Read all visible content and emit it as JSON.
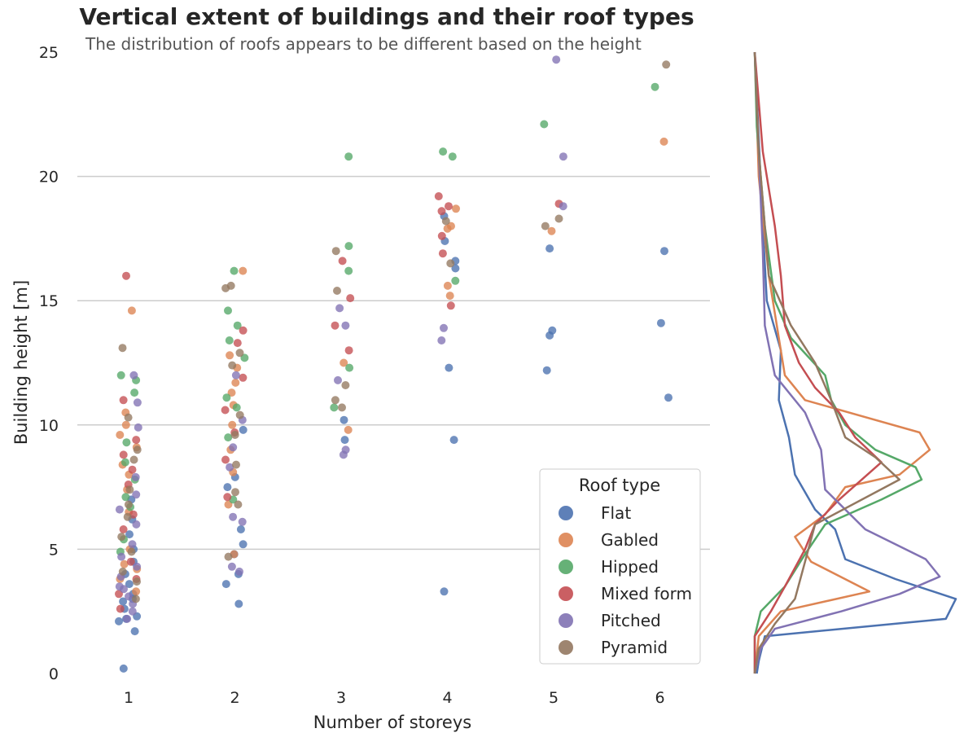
{
  "chart_data": {
    "type": "scatter",
    "title": "Vertical extent of buildings and their roof types",
    "subtitle": "The distribution of roofs appears to be different based on the height",
    "xlabel": "Number of storeys",
    "ylabel": "Building height [m]",
    "categories": [
      "1",
      "2",
      "3",
      "4",
      "5",
      "6"
    ],
    "ylim": [
      0,
      25
    ],
    "yticks": [
      "0",
      "5",
      "10",
      "15",
      "20",
      "25"
    ],
    "grid": "horizontal",
    "legend": {
      "title": "Roof type",
      "placement": "bottom-right"
    },
    "series": [
      {
        "name": "Flat",
        "color": "#4c72b0",
        "points": [
          [
            1,
            2.1
          ],
          [
            1,
            2.3
          ],
          [
            1,
            2.6
          ],
          [
            1,
            2.9
          ],
          [
            1,
            3.2
          ],
          [
            1,
            3.6
          ],
          [
            1,
            4.0
          ],
          [
            1,
            4.5
          ],
          [
            1,
            5.0
          ],
          [
            1,
            5.6
          ],
          [
            1,
            6.2
          ],
          [
            1,
            7.0
          ],
          [
            1,
            1.7
          ],
          [
            1,
            0.2
          ],
          [
            1,
            2.2
          ],
          [
            1,
            3.0
          ],
          [
            2,
            2.8
          ],
          [
            2,
            3.6
          ],
          [
            2,
            4.0
          ],
          [
            2,
            4.8
          ],
          [
            2,
            5.2
          ],
          [
            2,
            5.8
          ],
          [
            2,
            7.5
          ],
          [
            2,
            7.9
          ],
          [
            2,
            9.8
          ],
          [
            3,
            9.4
          ],
          [
            3,
            10.2
          ],
          [
            4,
            12.3
          ],
          [
            4,
            16.3
          ],
          [
            4,
            16.6
          ],
          [
            4,
            17.4
          ],
          [
            4,
            18.4
          ],
          [
            4,
            9.4
          ],
          [
            4,
            3.3
          ],
          [
            5,
            12.2
          ],
          [
            5,
            13.6
          ],
          [
            5,
            13.8
          ],
          [
            5,
            17.1
          ],
          [
            6,
            11.1
          ],
          [
            6,
            14.1
          ],
          [
            6,
            17.0
          ]
        ]
      },
      {
        "name": "Gabled",
        "color": "#dd8452",
        "points": [
          [
            1,
            3.3
          ],
          [
            1,
            3.8
          ],
          [
            1,
            4.4
          ],
          [
            1,
            5.0
          ],
          [
            1,
            6.5
          ],
          [
            1,
            7.4
          ],
          [
            1,
            8.4
          ],
          [
            1,
            9.1
          ],
          [
            1,
            9.6
          ],
          [
            1,
            10.0
          ],
          [
            1,
            10.5
          ],
          [
            1,
            14.6
          ],
          [
            1,
            4.2
          ],
          [
            1,
            8.0
          ],
          [
            2,
            6.8
          ],
          [
            2,
            8.1
          ],
          [
            2,
            9.0
          ],
          [
            2,
            10.0
          ],
          [
            2,
            10.8
          ],
          [
            2,
            11.3
          ],
          [
            2,
            11.7
          ],
          [
            2,
            12.3
          ],
          [
            2,
            12.8
          ],
          [
            2,
            16.2
          ],
          [
            2,
            4.8
          ],
          [
            3,
            9.8
          ],
          [
            3,
            12.5
          ],
          [
            4,
            15.2
          ],
          [
            4,
            15.6
          ],
          [
            4,
            17.9
          ],
          [
            4,
            18.0
          ],
          [
            4,
            18.7
          ],
          [
            5,
            17.8
          ],
          [
            6,
            21.4
          ]
        ]
      },
      {
        "name": "Hipped",
        "color": "#55a868",
        "points": [
          [
            1,
            5.4
          ],
          [
            1,
            6.7
          ],
          [
            1,
            7.1
          ],
          [
            1,
            8.5
          ],
          [
            1,
            9.3
          ],
          [
            1,
            11.3
          ],
          [
            1,
            11.8
          ],
          [
            1,
            12.0
          ],
          [
            1,
            7.8
          ],
          [
            1,
            4.9
          ],
          [
            2,
            7.0
          ],
          [
            2,
            9.5
          ],
          [
            2,
            11.1
          ],
          [
            2,
            12.7
          ],
          [
            2,
            13.4
          ],
          [
            2,
            14.0
          ],
          [
            2,
            14.6
          ],
          [
            2,
            16.2
          ],
          [
            2,
            10.7
          ],
          [
            3,
            10.7
          ],
          [
            3,
            12.3
          ],
          [
            3,
            16.2
          ],
          [
            3,
            17.2
          ],
          [
            3,
            20.8
          ],
          [
            4,
            15.8
          ],
          [
            4,
            20.8
          ],
          [
            4,
            21.0
          ],
          [
            5,
            22.1
          ],
          [
            6,
            23.6
          ]
        ]
      },
      {
        "name": "Mixed form",
        "color": "#c44e52",
        "points": [
          [
            1,
            2.6
          ],
          [
            1,
            3.2
          ],
          [
            1,
            4.5
          ],
          [
            1,
            5.8
          ],
          [
            1,
            6.4
          ],
          [
            1,
            7.6
          ],
          [
            1,
            8.2
          ],
          [
            1,
            8.8
          ],
          [
            1,
            9.4
          ],
          [
            1,
            11.0
          ],
          [
            1,
            16.0
          ],
          [
            1,
            3.8
          ],
          [
            2,
            7.1
          ],
          [
            2,
            9.7
          ],
          [
            2,
            10.6
          ],
          [
            2,
            11.9
          ],
          [
            2,
            13.3
          ],
          [
            2,
            13.8
          ],
          [
            2,
            8.6
          ],
          [
            3,
            13.0
          ],
          [
            3,
            14.0
          ],
          [
            3,
            15.1
          ],
          [
            3,
            16.6
          ],
          [
            4,
            14.8
          ],
          [
            4,
            16.9
          ],
          [
            4,
            17.6
          ],
          [
            4,
            18.6
          ],
          [
            4,
            18.8
          ],
          [
            4,
            19.2
          ],
          [
            5,
            18.9
          ]
        ]
      },
      {
        "name": "Pitched",
        "color": "#8172b3",
        "points": [
          [
            1,
            2.5
          ],
          [
            1,
            2.8
          ],
          [
            1,
            3.1
          ],
          [
            1,
            3.5
          ],
          [
            1,
            3.9
          ],
          [
            1,
            4.3
          ],
          [
            1,
            4.7
          ],
          [
            1,
            5.2
          ],
          [
            1,
            6.0
          ],
          [
            1,
            6.6
          ],
          [
            1,
            7.2
          ],
          [
            1,
            7.9
          ],
          [
            1,
            9.9
          ],
          [
            1,
            10.9
          ],
          [
            1,
            12.0
          ],
          [
            1,
            2.2
          ],
          [
            1,
            3.4
          ],
          [
            2,
            4.1
          ],
          [
            2,
            6.1
          ],
          [
            2,
            6.3
          ],
          [
            2,
            8.3
          ],
          [
            2,
            9.1
          ],
          [
            2,
            10.2
          ],
          [
            2,
            12.0
          ],
          [
            2,
            4.3
          ],
          [
            3,
            8.8
          ],
          [
            3,
            9.0
          ],
          [
            3,
            11.8
          ],
          [
            3,
            14.0
          ],
          [
            3,
            14.7
          ],
          [
            4,
            13.4
          ],
          [
            4,
            13.9
          ],
          [
            5,
            18.8
          ],
          [
            5,
            20.8
          ],
          [
            5,
            24.7
          ]
        ]
      },
      {
        "name": "Pyramid",
        "color": "#937860",
        "points": [
          [
            1,
            3.0
          ],
          [
            1,
            3.7
          ],
          [
            1,
            4.1
          ],
          [
            1,
            4.9
          ],
          [
            1,
            5.5
          ],
          [
            1,
            6.8
          ],
          [
            1,
            7.4
          ],
          [
            1,
            8.6
          ],
          [
            1,
            9.0
          ],
          [
            1,
            10.3
          ],
          [
            1,
            13.1
          ],
          [
            1,
            6.3
          ],
          [
            2,
            4.7
          ],
          [
            2,
            6.8
          ],
          [
            2,
            7.3
          ],
          [
            2,
            8.4
          ],
          [
            2,
            9.6
          ],
          [
            2,
            10.4
          ],
          [
            2,
            12.4
          ],
          [
            2,
            12.9
          ],
          [
            2,
            15.5
          ],
          [
            2,
            15.6
          ],
          [
            3,
            10.7
          ],
          [
            3,
            11.0
          ],
          [
            3,
            11.6
          ],
          [
            3,
            15.4
          ],
          [
            3,
            17.0
          ],
          [
            4,
            16.5
          ],
          [
            4,
            18.2
          ],
          [
            5,
            18.0
          ],
          [
            5,
            18.3
          ],
          [
            6,
            24.5
          ]
        ]
      }
    ],
    "density_profiles": {
      "type": "line",
      "description_axis": "height",
      "series": [
        {
          "name": "Flat",
          "color": "#4c72b0",
          "points": [
            [
              0,
              0.01
            ],
            [
              0.5,
              0.02
            ],
            [
              1.5,
              0.05
            ],
            [
              2.2,
              0.95
            ],
            [
              3.0,
              1.0
            ],
            [
              3.8,
              0.7
            ],
            [
              4.6,
              0.45
            ],
            [
              5.8,
              0.4
            ],
            [
              6.6,
              0.3
            ],
            [
              8.0,
              0.2
            ],
            [
              9.5,
              0.17
            ],
            [
              11.0,
              0.12
            ],
            [
              13.0,
              0.13
            ],
            [
              15.0,
              0.06
            ],
            [
              18.0,
              0.04
            ],
            [
              25,
              0.0
            ]
          ]
        },
        {
          "name": "Gabled",
          "color": "#dd8452",
          "points": [
            [
              0,
              0.0
            ],
            [
              1.5,
              0.02
            ],
            [
              2.5,
              0.13
            ],
            [
              3.3,
              0.57
            ],
            [
              4.5,
              0.28
            ],
            [
              5.5,
              0.2
            ],
            [
              6.4,
              0.35
            ],
            [
              7.5,
              0.45
            ],
            [
              8.0,
              0.72
            ],
            [
              9.0,
              0.87
            ],
            [
              9.7,
              0.82
            ],
            [
              11.0,
              0.25
            ],
            [
              12.0,
              0.15
            ],
            [
              13.5,
              0.12
            ],
            [
              16.0,
              0.07
            ],
            [
              20.0,
              0.02
            ],
            [
              25,
              0.0
            ]
          ]
        },
        {
          "name": "Hipped",
          "color": "#55a868",
          "points": [
            [
              0,
              0.0
            ],
            [
              1.5,
              0.0
            ],
            [
              2.5,
              0.03
            ],
            [
              3.5,
              0.15
            ],
            [
              4.8,
              0.25
            ],
            [
              6.0,
              0.35
            ],
            [
              7.0,
              0.63
            ],
            [
              7.8,
              0.83
            ],
            [
              8.3,
              0.8
            ],
            [
              9.0,
              0.6
            ],
            [
              10.0,
              0.45
            ],
            [
              11.0,
              0.38
            ],
            [
              12.0,
              0.35
            ],
            [
              13.5,
              0.18
            ],
            [
              15.0,
              0.1
            ],
            [
              18.0,
              0.05
            ],
            [
              22.0,
              0.01
            ],
            [
              25,
              0.0
            ]
          ]
        },
        {
          "name": "Mixed form",
          "color": "#c44e52",
          "points": [
            [
              0,
              0.0
            ],
            [
              1.5,
              0.0
            ],
            [
              2.5,
              0.08
            ],
            [
              3.5,
              0.15
            ],
            [
              5.0,
              0.25
            ],
            [
              6.0,
              0.3
            ],
            [
              7.0,
              0.42
            ],
            [
              8.5,
              0.63
            ],
            [
              9.5,
              0.5
            ],
            [
              10.5,
              0.42
            ],
            [
              11.5,
              0.3
            ],
            [
              12.5,
              0.22
            ],
            [
              14.0,
              0.15
            ],
            [
              16.0,
              0.13
            ],
            [
              18.0,
              0.1
            ],
            [
              21.0,
              0.04
            ],
            [
              25,
              0.0
            ]
          ]
        },
        {
          "name": "Pitched",
          "color": "#8172b3",
          "points": [
            [
              0,
              0.0
            ],
            [
              1.0,
              0.03
            ],
            [
              1.8,
              0.1
            ],
            [
              2.5,
              0.43
            ],
            [
              3.2,
              0.72
            ],
            [
              3.9,
              0.92
            ],
            [
              4.6,
              0.85
            ],
            [
              5.8,
              0.55
            ],
            [
              7.4,
              0.35
            ],
            [
              9.0,
              0.33
            ],
            [
              10.5,
              0.25
            ],
            [
              12.0,
              0.1
            ],
            [
              14.0,
              0.05
            ],
            [
              17.0,
              0.04
            ],
            [
              25,
              0.0
            ]
          ]
        },
        {
          "name": "Pyramid",
          "color": "#937860",
          "points": [
            [
              0,
              0.0
            ],
            [
              1.0,
              0.02
            ],
            [
              2.0,
              0.1
            ],
            [
              3.0,
              0.2
            ],
            [
              4.5,
              0.25
            ],
            [
              6.0,
              0.3
            ],
            [
              7.8,
              0.72
            ],
            [
              8.7,
              0.6
            ],
            [
              9.5,
              0.45
            ],
            [
              11.0,
              0.38
            ],
            [
              12.5,
              0.3
            ],
            [
              14.0,
              0.18
            ],
            [
              16.0,
              0.07
            ],
            [
              18.0,
              0.05
            ],
            [
              21.0,
              0.02
            ],
            [
              25,
              0.0
            ]
          ]
        }
      ]
    }
  }
}
